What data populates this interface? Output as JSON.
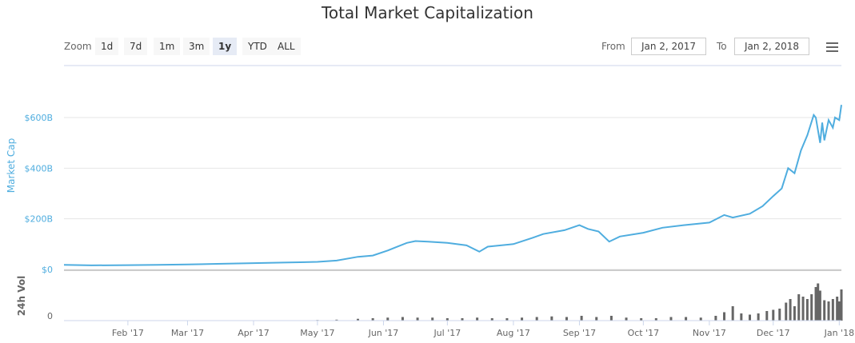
{
  "title": "Total Market Capitalization",
  "zoom": {
    "label": "Zoom",
    "buttons": [
      "1d",
      "7d",
      "1m",
      "3m",
      "1y",
      "YTD",
      "ALL"
    ],
    "selected": "1y"
  },
  "range": {
    "from_label": "From",
    "from": "Jan 2, 2017",
    "to_label": "To",
    "to": "Jan 2, 2018"
  },
  "menu_icon": "hamburger-icon",
  "colors": {
    "line": "#4faddf",
    "volume": "#666666",
    "grid": "#e6e6e6",
    "axis_label": "#4faddf"
  },
  "chart_data": [
    {
      "type": "line",
      "ylabel": "Market Cap",
      "yticks": [
        "$0",
        "$200B",
        "$400B",
        "$600B"
      ],
      "ylim": [
        0,
        660
      ],
      "unit": "B USD",
      "grid": true,
      "points": [
        [
          "2017-01-02",
          18
        ],
        [
          "2017-01-15",
          16
        ],
        [
          "2017-02-01",
          17
        ],
        [
          "2017-02-15",
          18
        ],
        [
          "2017-03-01",
          20
        ],
        [
          "2017-03-15",
          22
        ],
        [
          "2017-04-01",
          25
        ],
        [
          "2017-04-15",
          27
        ],
        [
          "2017-05-01",
          30
        ],
        [
          "2017-05-10",
          35
        ],
        [
          "2017-05-20",
          50
        ],
        [
          "2017-05-27",
          55
        ],
        [
          "2017-06-03",
          75
        ],
        [
          "2017-06-07",
          88
        ],
        [
          "2017-06-12",
          105
        ],
        [
          "2017-06-16",
          112
        ],
        [
          "2017-06-22",
          110
        ],
        [
          "2017-07-01",
          105
        ],
        [
          "2017-07-10",
          95
        ],
        [
          "2017-07-16",
          70
        ],
        [
          "2017-07-20",
          90
        ],
        [
          "2017-08-01",
          100
        ],
        [
          "2017-08-10",
          125
        ],
        [
          "2017-08-15",
          140
        ],
        [
          "2017-08-25",
          155
        ],
        [
          "2017-09-01",
          175
        ],
        [
          "2017-09-05",
          160
        ],
        [
          "2017-09-10",
          150
        ],
        [
          "2017-09-15",
          110
        ],
        [
          "2017-09-20",
          130
        ],
        [
          "2017-10-01",
          145
        ],
        [
          "2017-10-10",
          165
        ],
        [
          "2017-10-20",
          175
        ],
        [
          "2017-11-01",
          185
        ],
        [
          "2017-11-08",
          215
        ],
        [
          "2017-11-12",
          205
        ],
        [
          "2017-11-20",
          220
        ],
        [
          "2017-11-26",
          250
        ],
        [
          "2017-12-01",
          290
        ],
        [
          "2017-12-05",
          320
        ],
        [
          "2017-12-08",
          400
        ],
        [
          "2017-12-11",
          380
        ],
        [
          "2017-12-14",
          470
        ],
        [
          "2017-12-17",
          530
        ],
        [
          "2017-12-20",
          610
        ],
        [
          "2017-12-21",
          600
        ],
        [
          "2017-12-23",
          500
        ],
        [
          "2017-12-24",
          580
        ],
        [
          "2017-12-25",
          510
        ],
        [
          "2017-12-27",
          590
        ],
        [
          "2017-12-29",
          560
        ],
        [
          "2017-12-30",
          600
        ],
        [
          "2018-01-01",
          590
        ],
        [
          "2018-01-02",
          650
        ]
      ]
    },
    {
      "type": "bar",
      "ylabel": "24h Vol",
      "yticks": [
        "0"
      ],
      "unit": "B USD",
      "xticks": [
        "Feb '17",
        "Mar '17",
        "Apr '17",
        "May '17",
        "Jun '17",
        "Jul '17",
        "Aug '17",
        "Sep '17",
        "Oct '17",
        "Nov '17",
        "Dec '17",
        "Jan '18"
      ],
      "points": [
        [
          "2017-05-01",
          0.5
        ],
        [
          "2017-05-10",
          0.8
        ],
        [
          "2017-05-20",
          1.5
        ],
        [
          "2017-05-27",
          2
        ],
        [
          "2017-06-03",
          2.5
        ],
        [
          "2017-06-10",
          3
        ],
        [
          "2017-06-17",
          2.5
        ],
        [
          "2017-06-24",
          2.5
        ],
        [
          "2017-07-01",
          2
        ],
        [
          "2017-07-08",
          2
        ],
        [
          "2017-07-15",
          2.5
        ],
        [
          "2017-07-22",
          2
        ],
        [
          "2017-07-29",
          2
        ],
        [
          "2017-08-05",
          2.5
        ],
        [
          "2017-08-12",
          3
        ],
        [
          "2017-08-19",
          3.5
        ],
        [
          "2017-08-26",
          3
        ],
        [
          "2017-09-02",
          4
        ],
        [
          "2017-09-09",
          3
        ],
        [
          "2017-09-16",
          4
        ],
        [
          "2017-09-23",
          2.5
        ],
        [
          "2017-09-30",
          2
        ],
        [
          "2017-10-07",
          2
        ],
        [
          "2017-10-14",
          3
        ],
        [
          "2017-10-21",
          3
        ],
        [
          "2017-10-28",
          2.5
        ],
        [
          "2017-11-04",
          4
        ],
        [
          "2017-11-08",
          7
        ],
        [
          "2017-11-12",
          12
        ],
        [
          "2017-11-16",
          6
        ],
        [
          "2017-11-20",
          5
        ],
        [
          "2017-11-24",
          6
        ],
        [
          "2017-11-28",
          8
        ],
        [
          "2017-12-01",
          9
        ],
        [
          "2017-12-04",
          10
        ],
        [
          "2017-12-07",
          15
        ],
        [
          "2017-12-09",
          18
        ],
        [
          "2017-12-11",
          12
        ],
        [
          "2017-12-13",
          22
        ],
        [
          "2017-12-15",
          20
        ],
        [
          "2017-12-17",
          18
        ],
        [
          "2017-12-19",
          22
        ],
        [
          "2017-12-21",
          28
        ],
        [
          "2017-12-22",
          31
        ],
        [
          "2017-12-23",
          25
        ],
        [
          "2017-12-25",
          17
        ],
        [
          "2017-12-27",
          16
        ],
        [
          "2017-12-29",
          18
        ],
        [
          "2017-12-31",
          20
        ],
        [
          "2018-01-01",
          16
        ],
        [
          "2018-01-02",
          26
        ]
      ]
    }
  ]
}
